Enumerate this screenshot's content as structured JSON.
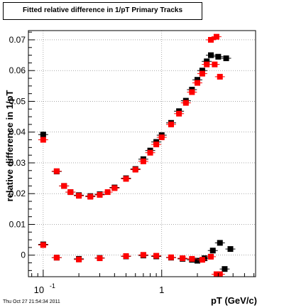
{
  "chart_data": {
    "type": "scatter",
    "title": "Fitted relative difference in 1/pT  Primary Tracks",
    "xlabel": "pT (GeV/c)",
    "ylabel": "relative difference in 1/pT",
    "x_scale": "log",
    "xlim": [
      0.075,
      6.2
    ],
    "ylim": [
      -0.007,
      0.073
    ],
    "x_ticks": [
      {
        "value": 0.1,
        "label": "10",
        "exp": "-1"
      },
      {
        "value": 1,
        "label": "1",
        "exp": ""
      }
    ],
    "y_ticks": [
      0,
      0.01,
      0.02,
      0.03,
      0.04,
      0.05,
      0.06,
      0.07
    ],
    "grid": true,
    "legend": "none",
    "series": [
      {
        "color": "#000000",
        "marker": "square",
        "points": [
          [
            0.1,
            0.0392
          ],
          [
            0.1,
            0.0035
          ],
          [
            0.13,
            0.0272
          ],
          [
            0.15,
            0.0225
          ],
          [
            0.17,
            0.0205
          ],
          [
            0.2,
            0.0195
          ],
          [
            0.25,
            0.0192
          ],
          [
            0.3,
            0.0198
          ],
          [
            0.4,
            0.022
          ],
          [
            0.5,
            0.025
          ],
          [
            0.6,
            0.028
          ],
          [
            0.7,
            0.0312
          ],
          [
            0.8,
            0.034
          ],
          [
            0.9,
            0.0368
          ],
          [
            1.0,
            0.039
          ],
          [
            1.2,
            0.043
          ],
          [
            1.4,
            0.0468
          ],
          [
            1.6,
            0.0502
          ],
          [
            1.8,
            0.0538
          ],
          [
            2.0,
            0.057
          ],
          [
            2.2,
            0.06
          ],
          [
            2.4,
            0.063
          ],
          [
            2.6,
            0.065
          ],
          [
            3.0,
            0.0645
          ],
          [
            3.5,
            0.064
          ],
          [
            0.13,
            -0.0008
          ],
          [
            0.2,
            -0.0012
          ],
          [
            0.3,
            -0.0009
          ],
          [
            0.5,
            -0.0004
          ],
          [
            0.7,
            -0.0001
          ],
          [
            0.9,
            -0.0004
          ],
          [
            1.2,
            -0.0008
          ],
          [
            1.5,
            -0.0012
          ],
          [
            1.8,
            -0.0015
          ],
          [
            2.0,
            -0.0018
          ],
          [
            2.3,
            -0.001
          ],
          [
            2.7,
            0.0015
          ],
          [
            3.1,
            0.004
          ],
          [
            3.4,
            -0.0045
          ],
          [
            3.8,
            0.002
          ]
        ]
      },
      {
        "color": "#ff0000",
        "marker": "square",
        "points": [
          [
            0.1,
            0.0375
          ],
          [
            0.1,
            0.0033
          ],
          [
            0.13,
            0.0273
          ],
          [
            0.15,
            0.0225
          ],
          [
            0.17,
            0.0205
          ],
          [
            0.2,
            0.0193
          ],
          [
            0.25,
            0.019
          ],
          [
            0.3,
            0.0196
          ],
          [
            0.35,
            0.0205
          ],
          [
            0.4,
            0.0218
          ],
          [
            0.5,
            0.0248
          ],
          [
            0.6,
            0.0278
          ],
          [
            0.7,
            0.0305
          ],
          [
            0.8,
            0.0333
          ],
          [
            0.9,
            0.036
          ],
          [
            1.0,
            0.0383
          ],
          [
            1.2,
            0.0425
          ],
          [
            1.4,
            0.046
          ],
          [
            1.6,
            0.0495
          ],
          [
            1.8,
            0.053
          ],
          [
            2.0,
            0.056
          ],
          [
            2.2,
            0.059
          ],
          [
            2.4,
            0.062
          ],
          [
            2.6,
            0.07
          ],
          [
            2.9,
            0.071
          ],
          [
            3.1,
            0.058
          ],
          [
            2.8,
            0.062
          ],
          [
            0.13,
            -0.0008
          ],
          [
            0.2,
            -0.0014
          ],
          [
            0.3,
            -0.001
          ],
          [
            0.5,
            -0.0003
          ],
          [
            0.7,
            0.0001
          ],
          [
            0.9,
            -0.0002
          ],
          [
            1.2,
            -0.0007
          ],
          [
            1.5,
            -0.001
          ],
          [
            1.8,
            -0.0012
          ],
          [
            2.2,
            -0.0015
          ],
          [
            2.6,
            -0.0005
          ],
          [
            2.9,
            -0.0062
          ],
          [
            3.1,
            -0.0062
          ]
        ]
      }
    ]
  },
  "timestamp": "Thu Oct 27 21:54:34 2011"
}
